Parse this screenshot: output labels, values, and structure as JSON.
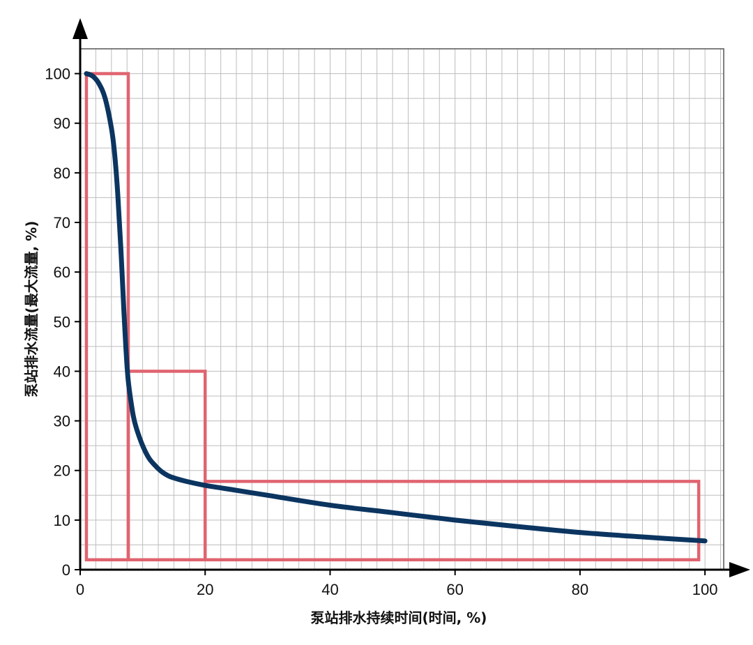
{
  "chart_data": {
    "type": "line",
    "xlabel": "泵站排水持续时间(时间, %)",
    "ylabel": "泵站排水流量(最大流量, %)",
    "xlim": [
      0,
      103
    ],
    "ylim": [
      0,
      105
    ],
    "x_ticks": [
      "0",
      "20",
      "40",
      "60",
      "80",
      "100"
    ],
    "y_ticks": [
      "0",
      "10",
      "20",
      "30",
      "40",
      "50",
      "60",
      "70",
      "80",
      "90",
      "100"
    ],
    "grid": true,
    "colors": {
      "curve": "#0b3560",
      "boxes": "#e06470",
      "grid": "#bdbdbd",
      "axis": "#000000"
    },
    "series": [
      {
        "x": [
          1,
          2,
          3,
          4,
          5,
          5.5,
          6,
          6.5,
          7,
          7.3,
          7.5,
          7.7,
          8,
          8.5,
          9,
          10,
          11,
          12,
          13,
          14,
          15,
          17,
          20,
          25,
          30,
          40,
          50,
          60,
          70,
          80,
          90,
          100
        ],
        "y": [
          100,
          99.5,
          98,
          95,
          89,
          84,
          76,
          65,
          52,
          45,
          41,
          38,
          35,
          31,
          28.5,
          25,
          22.5,
          21,
          19.8,
          19,
          18.5,
          17.8,
          17,
          16,
          15,
          13,
          11.5,
          10,
          8.7,
          7.5,
          6.6,
          5.8
        ]
      }
    ],
    "rectangles": [
      {
        "x0": 1,
        "x1": 7.7,
        "y0": 2,
        "y1": 100
      },
      {
        "x0": 7.7,
        "x1": 20,
        "y0": 2,
        "y1": 40
      },
      {
        "x0": 20,
        "x1": 99,
        "y0": 2,
        "y1": 17.8
      }
    ]
  }
}
